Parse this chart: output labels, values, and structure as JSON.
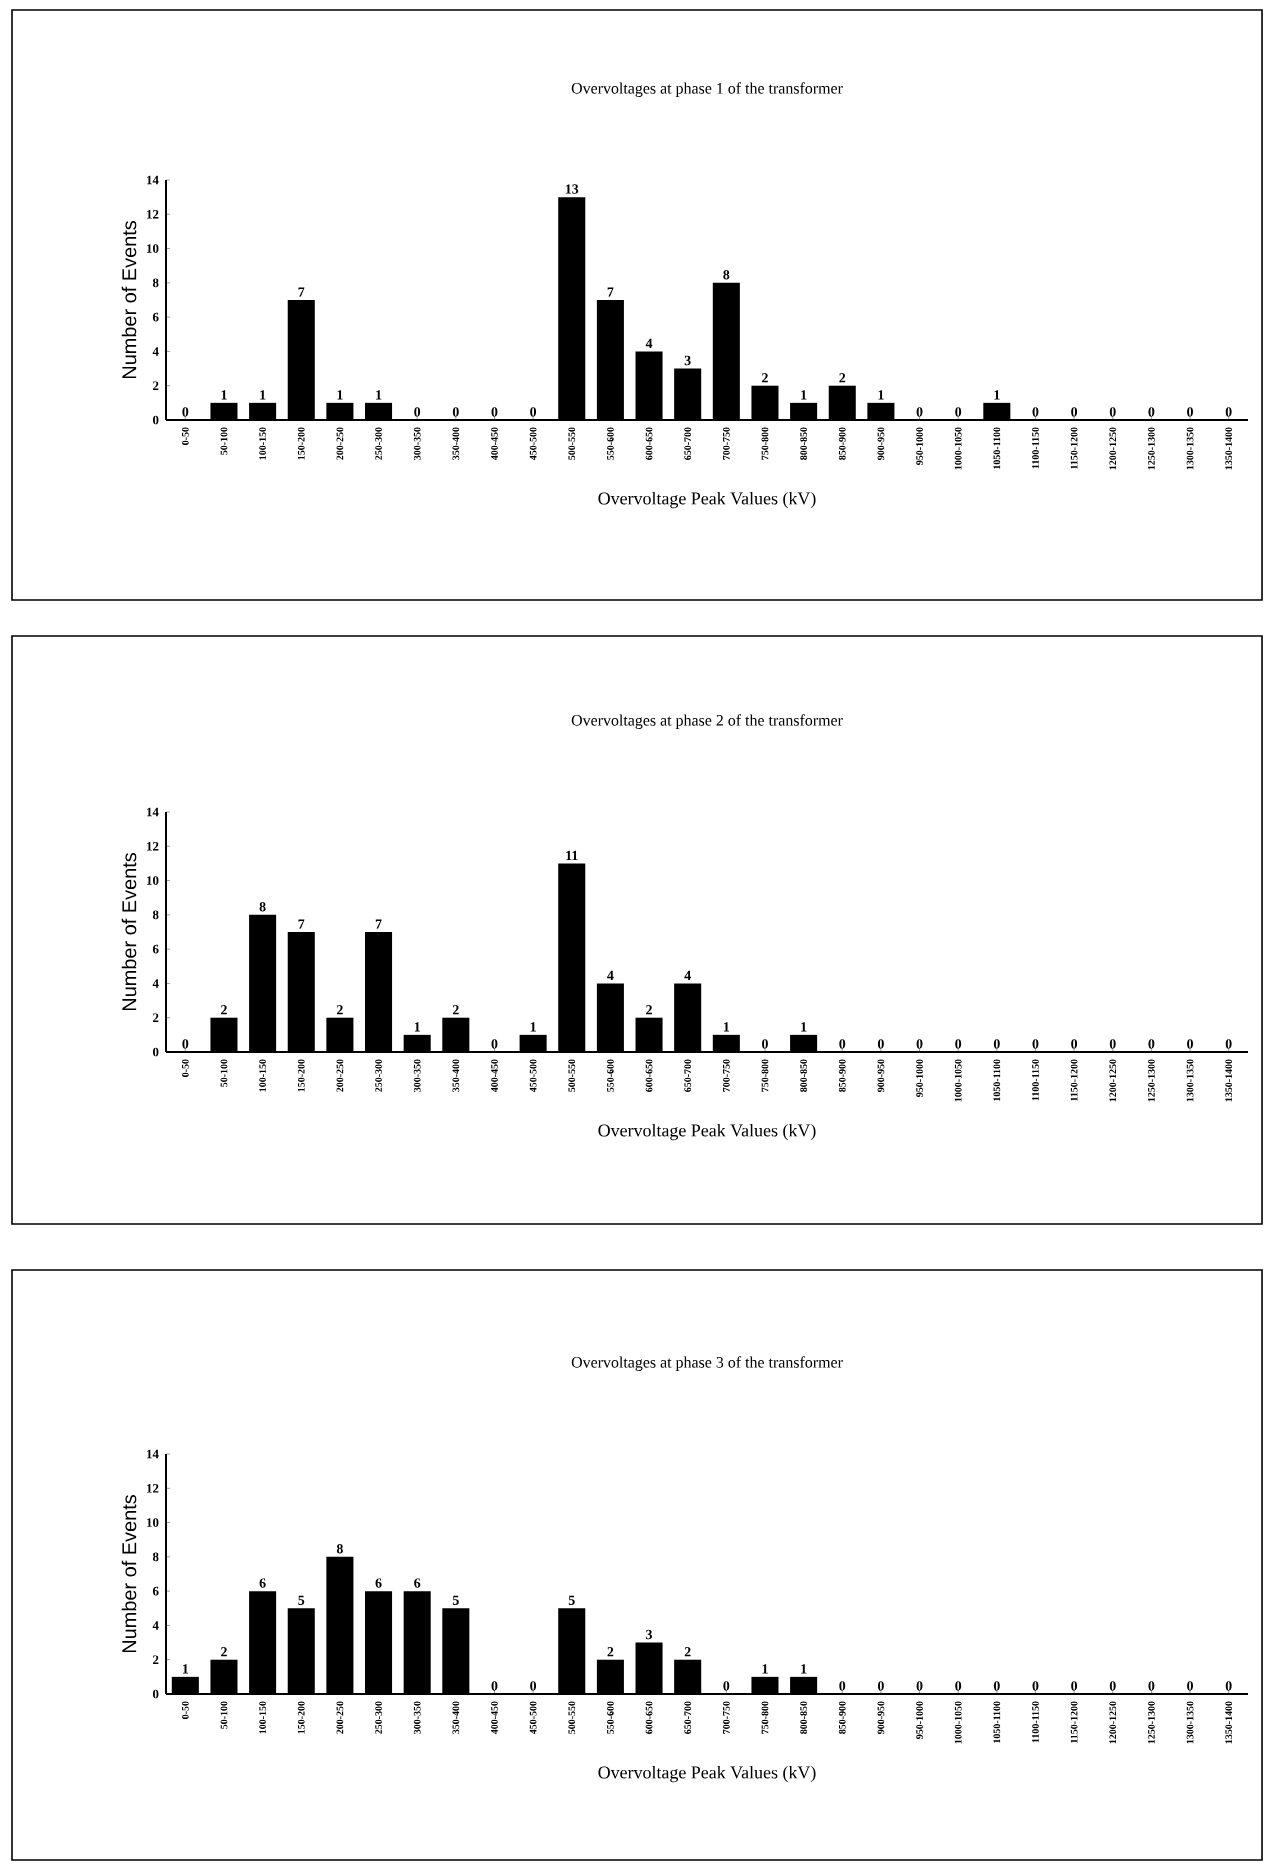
{
  "chart_data": [
    {
      "type": "bar",
      "title": "Overvoltages at phase 1 of the transformer",
      "xlabel": "Overvoltage Peak Values (kV)",
      "ylabel": "Number of Events",
      "categories": [
        "0-50",
        "50-100",
        "100-150",
        "150-200",
        "200-250",
        "250-300",
        "300-350",
        "350-400",
        "400-450",
        "450-500",
        "500-550",
        "550-600",
        "600-650",
        "650-700",
        "700-750",
        "750-800",
        "800-850",
        "850-900",
        "900-950",
        "950-1000",
        "1000-1050",
        "1050-1100",
        "1100-1150",
        "1150-1200",
        "1200-1250",
        "1250-1300",
        "1300-1350",
        "1350-1400"
      ],
      "values": [
        0,
        1,
        1,
        7,
        1,
        1,
        0,
        0,
        0,
        0,
        13,
        7,
        4,
        3,
        8,
        2,
        1,
        2,
        1,
        0,
        0,
        1,
        0,
        0,
        0,
        0,
        0,
        0
      ],
      "color": "#000000",
      "ylim": [
        0,
        14
      ],
      "yticks": [
        0,
        2,
        4,
        6,
        8,
        10,
        12,
        14
      ],
      "data_labels": true
    },
    {
      "type": "bar",
      "title": "Overvoltages at phase 2 of the transformer",
      "xlabel": "Overvoltage Peak Values (kV)",
      "ylabel": "Number of Events",
      "categories": [
        "0-50",
        "50-100",
        "100-150",
        "150-200",
        "200-250",
        "250-300",
        "300-350",
        "350-400",
        "400-450",
        "450-500",
        "500-550",
        "550-600",
        "600-650",
        "650-700",
        "700-750",
        "750-800",
        "800-850",
        "850-900",
        "900-950",
        "950-1000",
        "1000-1050",
        "1050-1100",
        "1100-1150",
        "1150-1200",
        "1200-1250",
        "1250-1300",
        "1300-1350",
        "1350-1400"
      ],
      "values": [
        0,
        2,
        8,
        7,
        2,
        7,
        1,
        2,
        0,
        1,
        11,
        4,
        2,
        4,
        1,
        0,
        1,
        0,
        0,
        0,
        0,
        0,
        0,
        0,
        0,
        0,
        0,
        0
      ],
      "color": "#000000",
      "ylim": [
        0,
        14
      ],
      "yticks": [
        0,
        2,
        4,
        6,
        8,
        10,
        12,
        14
      ],
      "data_labels": true
    },
    {
      "type": "bar",
      "title": "Overvoltages at phase 3 of the transformer",
      "xlabel": "Overvoltage Peak Values (kV)",
      "ylabel": "Number of Events",
      "categories": [
        "0-50",
        "50-100",
        "100-150",
        "150-200",
        "200-250",
        "250-300",
        "300-350",
        "350-400",
        "400-450",
        "450-500",
        "500-550",
        "550-600",
        "600-650",
        "650-700",
        "700-750",
        "750-800",
        "800-850",
        "850-900",
        "900-950",
        "950-1000",
        "1000-1050",
        "1050-1100",
        "1100-1150",
        "1150-1200",
        "1200-1250",
        "1250-1300",
        "1300-1350",
        "1350-1400"
      ],
      "values": [
        1,
        2,
        6,
        5,
        8,
        6,
        6,
        5,
        0,
        0,
        5,
        2,
        3,
        2,
        0,
        1,
        1,
        0,
        0,
        0,
        0,
        0,
        0,
        0,
        0,
        0,
        0,
        0
      ],
      "color": "#000000",
      "ylim": [
        0,
        14
      ],
      "yticks": [
        0,
        2,
        4,
        6,
        8,
        10,
        12,
        14
      ],
      "data_labels": true
    }
  ]
}
